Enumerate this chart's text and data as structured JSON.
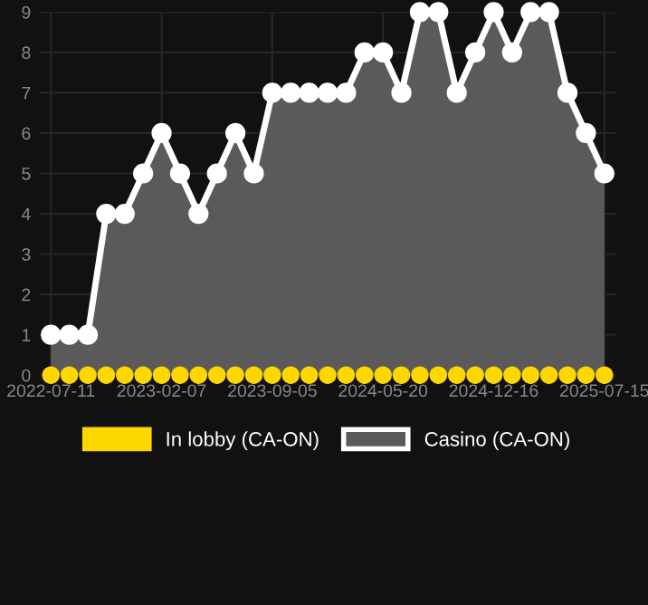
{
  "chart_data": {
    "type": "area",
    "categories": [
      "2022-07-11",
      null,
      null,
      null,
      null,
      null,
      "2023-02-07",
      null,
      null,
      null,
      null,
      null,
      "2023-09-05",
      null,
      null,
      null,
      null,
      null,
      "2024-05-20",
      null,
      null,
      null,
      null,
      null,
      "2024-12-16",
      null,
      null,
      null,
      null,
      null,
      "2025-07-15"
    ],
    "series": [
      {
        "name": "In lobby (CA-ON)",
        "type": "scatter",
        "color": "#ffd700",
        "values": [
          0,
          0,
          0,
          0,
          0,
          0,
          0,
          0,
          0,
          0,
          0,
          0,
          0,
          0,
          0,
          0,
          0,
          0,
          0,
          0,
          0,
          0,
          0,
          0,
          0,
          0,
          0,
          0,
          0,
          0,
          0
        ]
      },
      {
        "name": "Casino (CA-ON)",
        "color": "#ffffff",
        "values": [
          1,
          1,
          1,
          4,
          4,
          5,
          6,
          5,
          4,
          5,
          6,
          5,
          7,
          7,
          7,
          7,
          7,
          8,
          8,
          7,
          9,
          9,
          7,
          8,
          9,
          8,
          9,
          9,
          7,
          6,
          5
        ]
      }
    ],
    "ylim": [
      0,
      9
    ],
    "yticks": [
      0,
      1,
      2,
      3,
      4,
      5,
      6,
      7,
      8,
      9
    ],
    "grid": true,
    "legend": "bottom",
    "marker": "circle",
    "line_style": "solid"
  }
}
